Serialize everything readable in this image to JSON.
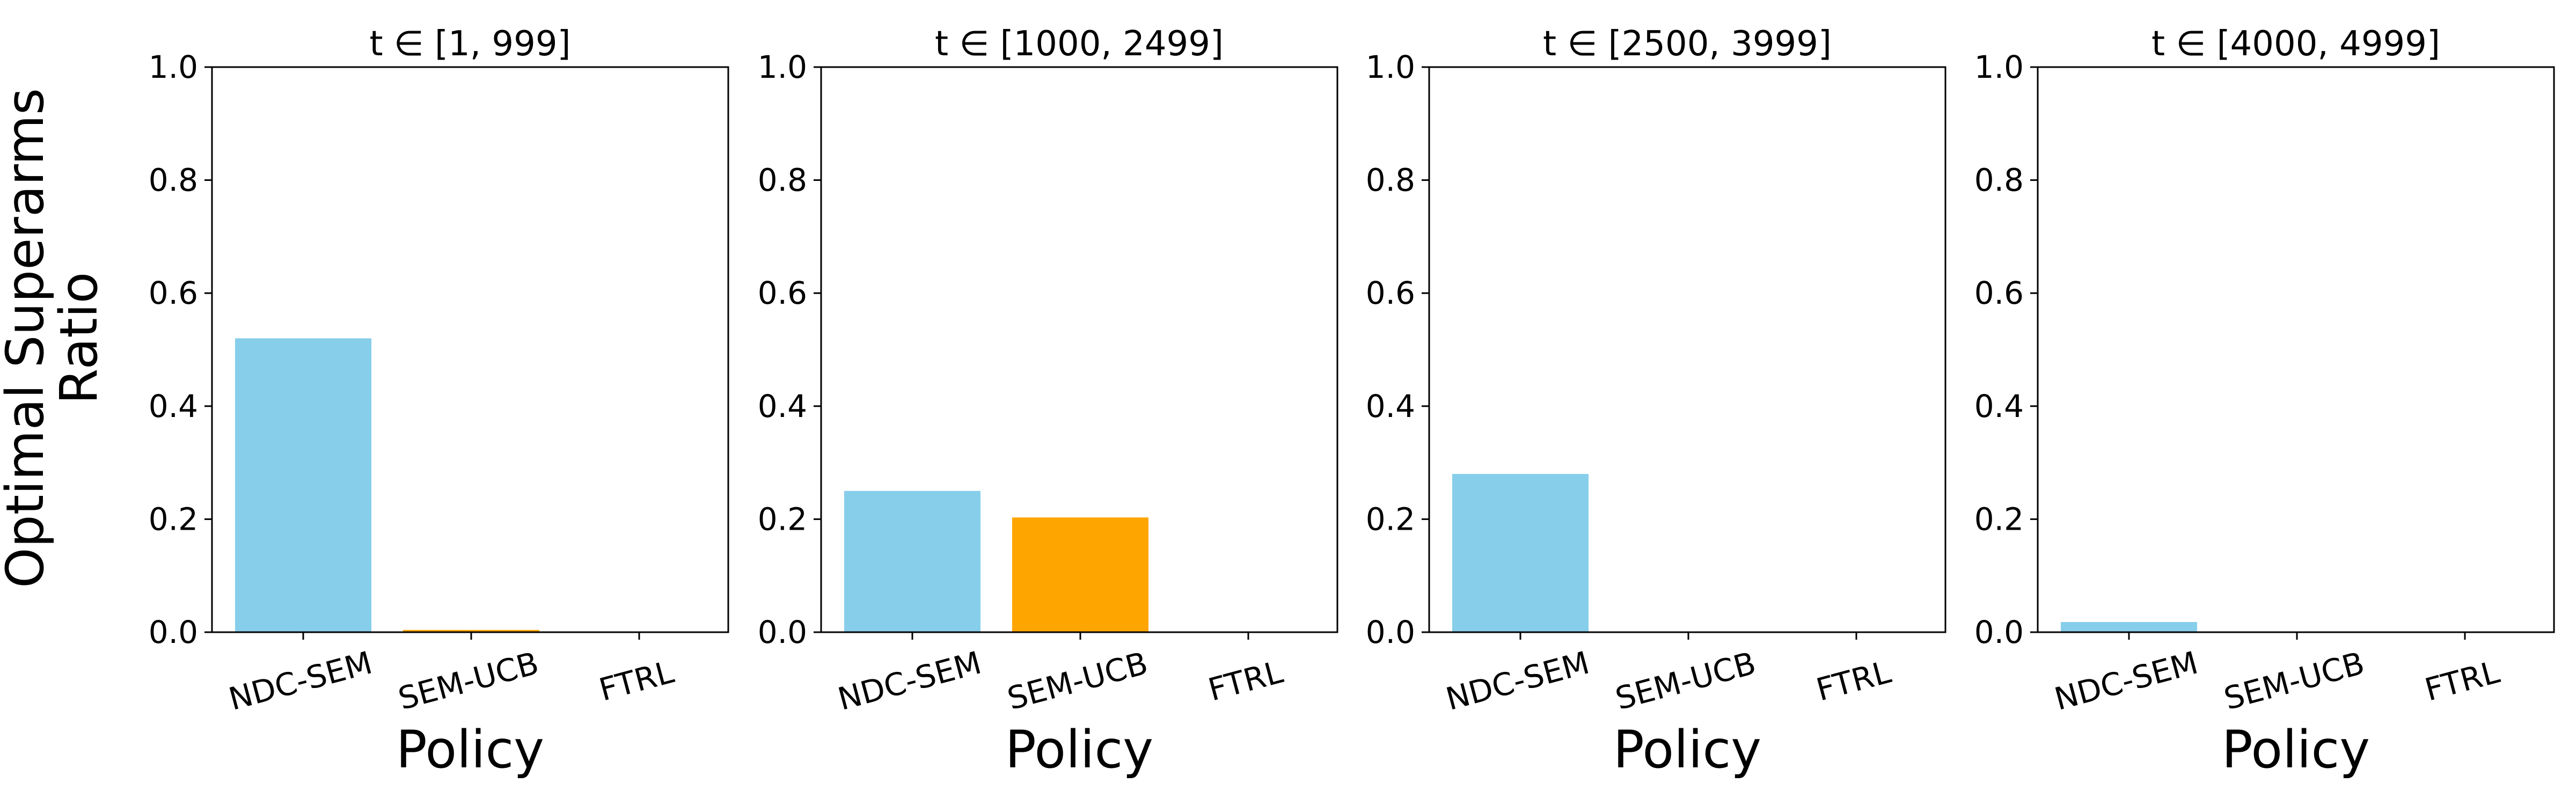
{
  "chart_data": [
    {
      "type": "bar",
      "title": "t ∈ [1, 999]",
      "xlabel": "Policy",
      "ylabel": "Optimal Superarms Ratio",
      "categories": [
        "NDC-SEM",
        "SEM-UCB",
        "FTRL"
      ],
      "values": [
        0.52,
        0.004,
        0.0
      ],
      "ylim": [
        0,
        1.0
      ],
      "yticks": [
        "0.0",
        "0.2",
        "0.4",
        "0.6",
        "0.8",
        "1.0"
      ],
      "grid": false
    },
    {
      "type": "bar",
      "title": "t ∈ [1000, 2499]",
      "xlabel": "Policy",
      "categories": [
        "NDC-SEM",
        "SEM-UCB",
        "FTRL"
      ],
      "values": [
        0.25,
        0.203,
        0.0
      ],
      "ylim": [
        0,
        1.0
      ],
      "yticks": [
        "0.0",
        "0.2",
        "0.4",
        "0.6",
        "0.8",
        "1.0"
      ],
      "grid": false
    },
    {
      "type": "bar",
      "title": "t ∈ [2500, 3999]",
      "xlabel": "Policy",
      "categories": [
        "NDC-SEM",
        "SEM-UCB",
        "FTRL"
      ],
      "values": [
        0.28,
        0.001,
        0.0
      ],
      "ylim": [
        0,
        1.0
      ],
      "yticks": [
        "0.0",
        "0.2",
        "0.4",
        "0.6",
        "0.8",
        "1.0"
      ],
      "grid": false
    },
    {
      "type": "bar",
      "title": "t ∈ [4000, 4999]",
      "xlabel": "Policy",
      "categories": [
        "NDC-SEM",
        "SEM-UCB",
        "FTRL"
      ],
      "values": [
        0.018,
        0.001,
        0.0
      ],
      "ylim": [
        0,
        1.0
      ],
      "yticks": [
        "0.0",
        "0.2",
        "0.4",
        "0.6",
        "0.8",
        "1.0"
      ],
      "grid": false
    }
  ],
  "colors": {
    "NDC-SEM": "#87CEEB",
    "SEM-UCB": "#FFA500",
    "FTRL": "#90EE90",
    "axis": "#000000"
  }
}
